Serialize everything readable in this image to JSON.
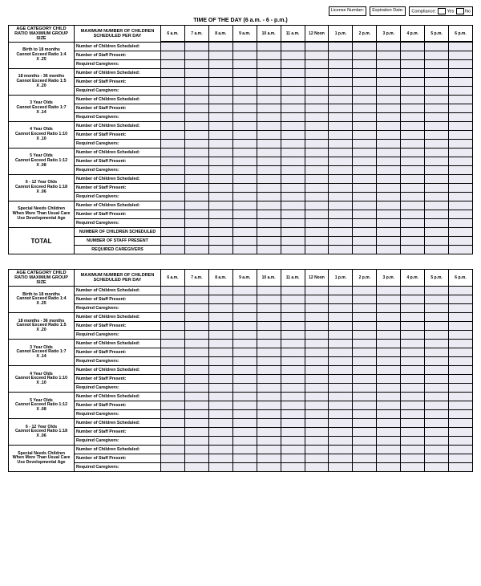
{
  "top": {
    "license": "License Number:",
    "expiration": "Expiration Date:",
    "compliance": "Compliance:",
    "yes": "Yes",
    "no": "No"
  },
  "title": "TIME OF THE DAY (6 a.m. - 6 - p.m.)",
  "headers": {
    "age": "AGE CATEGORY CHILD RATIO MAXIMUM GROUP SIZE",
    "max": "MAXIMUM NUMBER OF CHILDREN SCHEDULED PER DAY"
  },
  "times": [
    "6 a.m.",
    "7 a.m.",
    "8 a.m.",
    "9 a.m.",
    "10 a.m.",
    "11 a.m.",
    "12 Noon",
    "1 p.m.",
    "2 p.m.",
    "3 p.m.",
    "4 p.m.",
    "5 p.m.",
    "6 p.m."
  ],
  "rowLabels": {
    "children": "Number of Children Scheduled:",
    "staff": "Number of Staff Present:",
    "caregivers": "Required Caregivers:"
  },
  "ageGroups": [
    {
      "l1": "Birth to 18 months",
      "l2": "Cannot Exceed Ratio 1:4",
      "l3": "X .25"
    },
    {
      "l1": "18 months - 36 months",
      "l2": "Cannot Exceed Ratio 1:5",
      "l3": "X .20"
    },
    {
      "l1": "3 Year Olds",
      "l2": "Cannot Exceed Ratio 1:7",
      "l3": "X .14"
    },
    {
      "l1": "4 Year Olds",
      "l2": "Cannot Exceed Ratio 1:10",
      "l3": "X .10"
    },
    {
      "l1": "5 Year Olds",
      "l2": "Cannot Exceed Ratio 1:12",
      "l3": "X .08"
    },
    {
      "l1": "6 - 12 Year Olds",
      "l2": "Cannot Exceed Ratio 1:18",
      "l3": "X .06"
    },
    {
      "l1": "Special Needs Children",
      "l2": "When More Than Usual Care",
      "l3": "Use Developmental Age"
    }
  ],
  "totals": {
    "label": "TOTAL",
    "r1": "NUMBER OF CHILDREN SCHEDULED",
    "r2": "NUMBER OF STAFF PRESENT",
    "r3": "REQUIRED CAREGIVERS"
  },
  "colors": {
    "cellBg": "#eceaf2",
    "border": "#000000",
    "pageBg": "#ffffff"
  }
}
